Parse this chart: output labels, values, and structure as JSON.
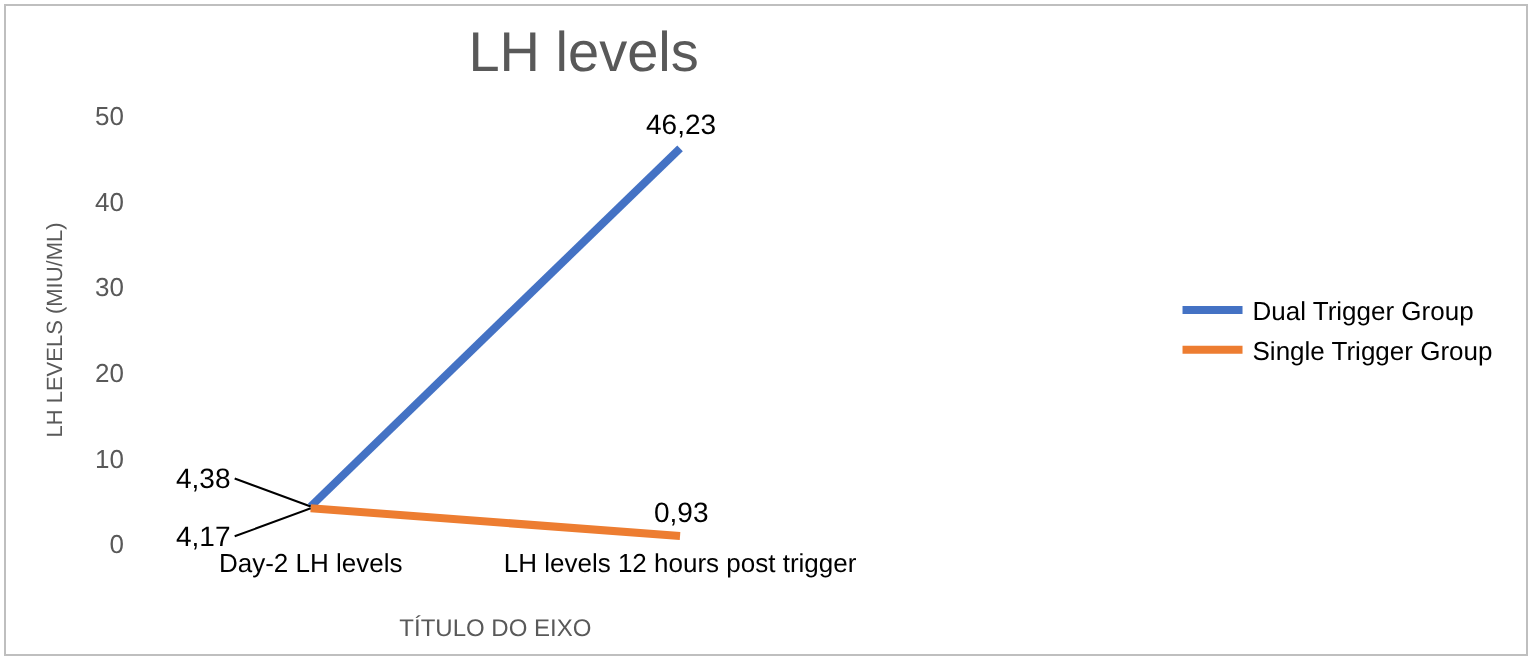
{
  "chart_data": {
    "type": "line",
    "title": "LH levels",
    "xlabel": "TÍTULO DO EIXO",
    "ylabel": "LH LEVELS (MIU/ML)",
    "categories": [
      "Day-2 LH levels",
      "LH levels 12 hours post trigger"
    ],
    "series": [
      {
        "name": "Dual Trigger Group",
        "color": "#4472c4",
        "values": [
          4.38,
          46.23
        ],
        "value_labels": [
          "4,38",
          "46,23"
        ]
      },
      {
        "name": "Single Trigger Group",
        "color": "#ed7d31",
        "values": [
          4.17,
          0.93
        ],
        "value_labels": [
          "4,17",
          "0,93"
        ]
      }
    ],
    "ylim": [
      0,
      50
    ],
    "yticks": [
      0,
      10,
      20,
      30,
      40,
      50
    ],
    "grid": false,
    "legend": "right",
    "marker": "none",
    "line_style": "solid"
  }
}
